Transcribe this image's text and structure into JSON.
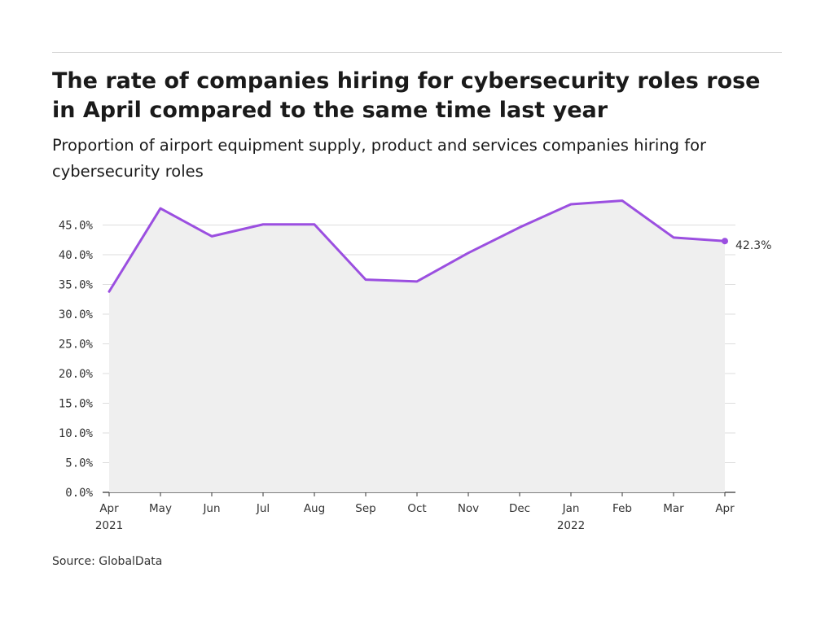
{
  "title": "The rate of companies hiring for cybersecurity roles rose in April compared to the same time last year",
  "subtitle": "Proportion of airport equipment supply, product and services companies hiring for cybersecurity roles",
  "source": "Source: GlobalData",
  "colors": {
    "line": "#9b4fe0",
    "area": "#efefef",
    "grid": "#dddddd",
    "axis": "#333333"
  },
  "chart_data": {
    "type": "area",
    "categories": [
      "Apr",
      "May",
      "Jun",
      "Jul",
      "Aug",
      "Sep",
      "Oct",
      "Nov",
      "Dec",
      "Jan",
      "Feb",
      "Mar",
      "Apr"
    ],
    "category_sublabels": [
      "2021",
      "",
      "",
      "",
      "",
      "",
      "",
      "",
      "",
      "2022",
      "",
      "",
      ""
    ],
    "series": [
      {
        "values": [
          33.8,
          47.8,
          43.1,
          45.1,
          45.1,
          35.8,
          35.5,
          40.3,
          44.6,
          48.5,
          49.1,
          42.9,
          42.3
        ]
      }
    ],
    "y_ticks": [
      "0.0%",
      "5.0%",
      "10.0%",
      "15.0%",
      "20.0%",
      "25.0%",
      "30.0%",
      "35.0%",
      "40.0%",
      "45.0%"
    ],
    "ylim": [
      0,
      50
    ],
    "end_label": "42.3%",
    "grid": true,
    "legend": "none"
  }
}
